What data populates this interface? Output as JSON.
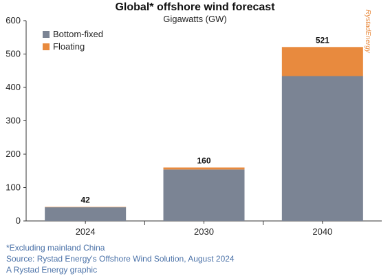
{
  "chart_data": {
    "type": "bar",
    "stacked": true,
    "title": "Global* offshore wind forecast",
    "subtitle": "Gigawatts (GW)",
    "categories": [
      "2024",
      "2030",
      "2040"
    ],
    "series": [
      {
        "name": "Bottom-fixed",
        "values": [
          41,
          154,
          434
        ],
        "color": "#7b8494"
      },
      {
        "name": "Floating",
        "values": [
          1,
          6,
          87
        ],
        "color": "#e88a3e"
      }
    ],
    "totals": [
      "42",
      "160",
      "521"
    ],
    "ylim": [
      0,
      600
    ],
    "yticks": [
      0,
      100,
      200,
      300,
      400,
      500,
      600
    ],
    "grid": false,
    "legend_position": "top-left"
  },
  "brand": "RystadEnergy",
  "footnotes": [
    "*Excluding mainland China",
    "Source: Rystad Energy's Offshore Wind Solution, August 2024",
    "A Rystad Energy graphic"
  ],
  "colors": {
    "axis": "#333333",
    "footnote": "#4b72a8"
  }
}
